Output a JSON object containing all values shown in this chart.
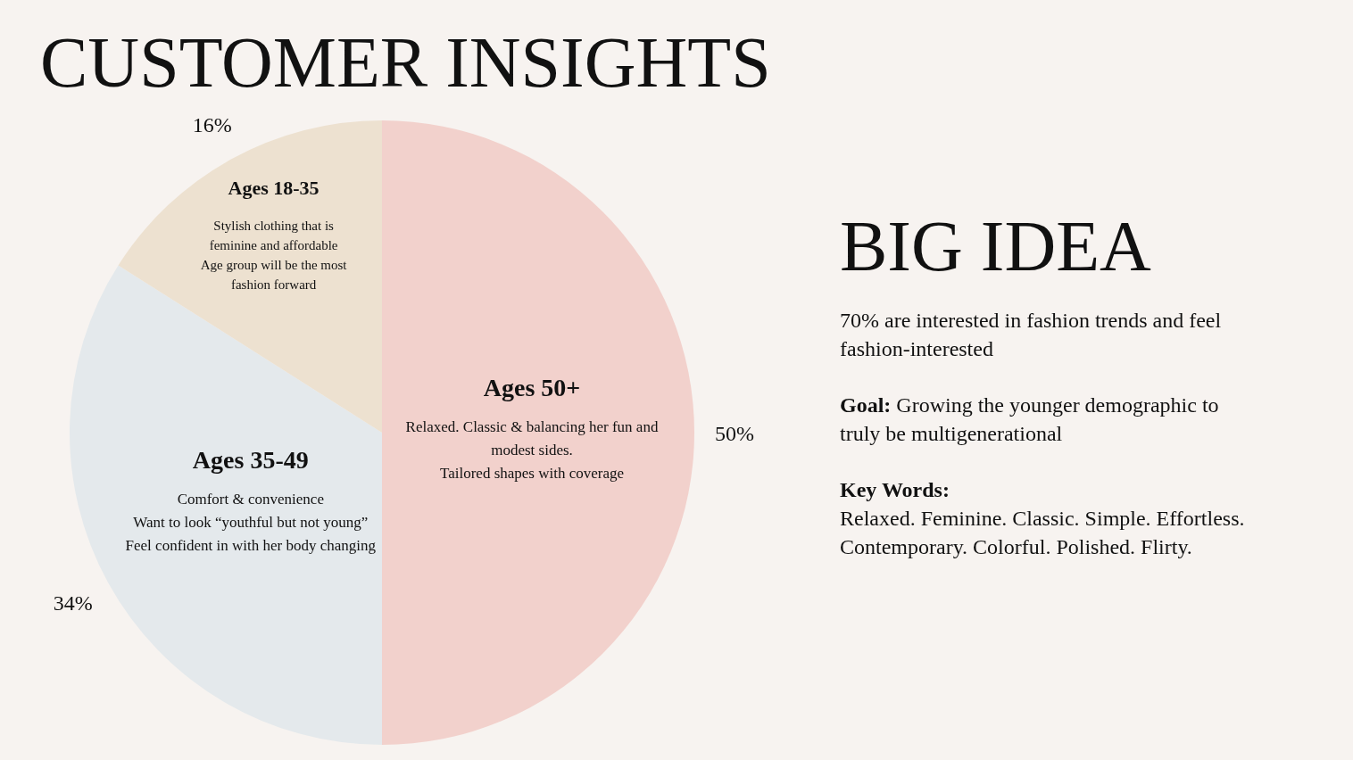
{
  "chart_data": [
    {
      "type": "pie",
      "title": "CUSTOMER INSIGHTS",
      "categories": [
        "Ages 50+",
        "Ages 35-49",
        "Ages 18-35"
      ],
      "values": [
        50,
        34,
        16
      ],
      "colors": [
        "#f2d1cc",
        "#e4e9ec",
        "#ede1d0"
      ],
      "value_labels": [
        "50%",
        "34%",
        "16%"
      ],
      "annotations": [
        "Relaxed. Classic & balancing her fun and modest sides.\nTailored shapes with coverage",
        "Comfort & convenience\nWant to look “youthful but not young”\nFeel confident in with her body changing",
        "Stylish clothing that is feminine and affordable\nAge group will be the most fashion forward"
      ]
    },
    {
      "type": "other",
      "title": "BIG IDEA",
      "annotations": [
        "70% are interested in fashion trends and feel fashion-interested",
        "Goal: Growing the younger demographic to truly be multigenerational",
        "Key Words:\nRelaxed. Feminine. Classic. Simple. Effortless. Contemporary. Colorful. Polished. Flirty."
      ]
    }
  ]
}
